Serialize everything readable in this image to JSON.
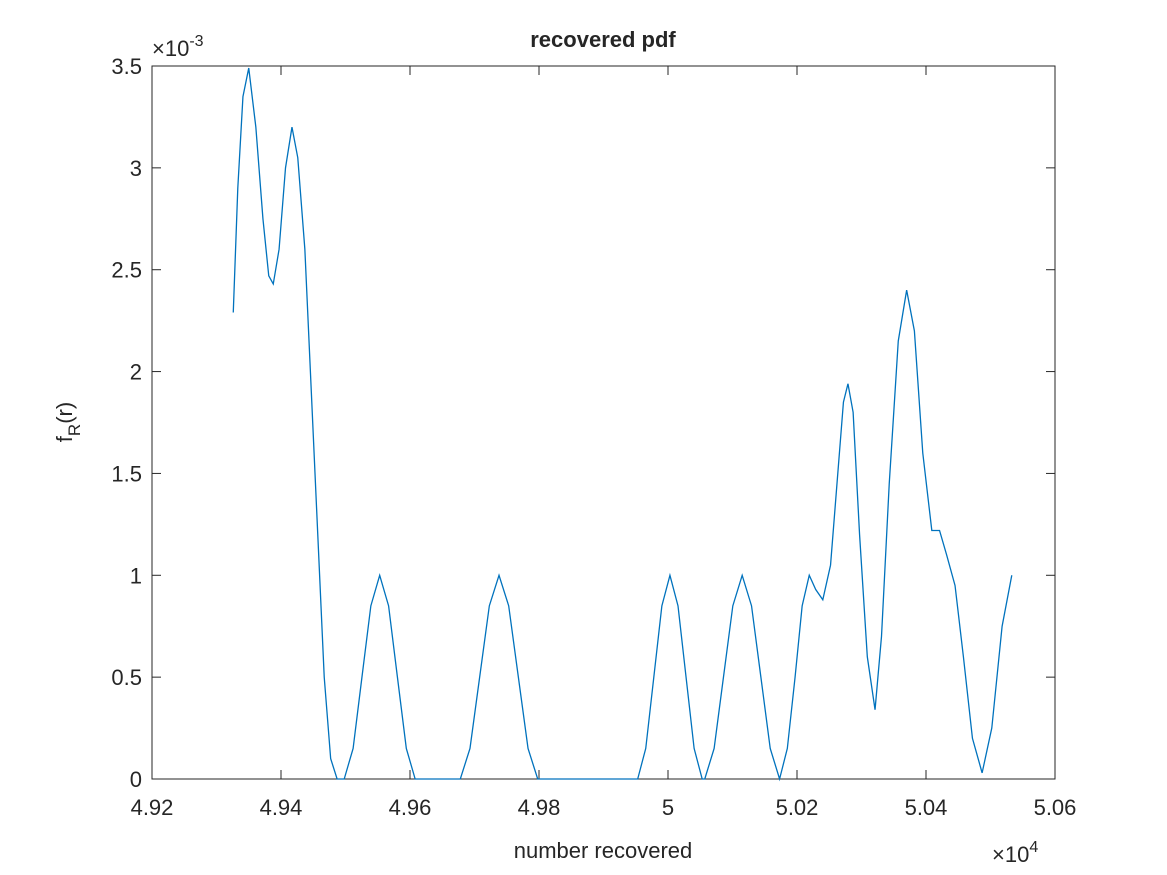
{
  "chart_data": {
    "type": "line",
    "title": "recovered pdf",
    "xlabel": "number recovered",
    "ylabel": {
      "main": "f",
      "sub": "R",
      "tail": "(r)"
    },
    "x_multiplier": {
      "base": "×10",
      "exponent": "4"
    },
    "y_multiplier": {
      "base": "×10",
      "exponent": "-3"
    },
    "xlim": [
      4.92,
      5.06
    ],
    "xticks": [
      4.92,
      4.94,
      4.96,
      4.98,
      5,
      5.02,
      5.04,
      5.06
    ],
    "ylim": [
      0,
      3.5
    ],
    "yticks": [
      0,
      0.5,
      1,
      1.5,
      2,
      2.5,
      3,
      3.5
    ],
    "grid": false,
    "series": [
      {
        "color": "#0072bd",
        "x": [
          4.9326,
          4.9333,
          4.9341,
          4.935,
          4.9361,
          4.9372,
          4.9381,
          4.9388,
          4.9397,
          4.9407,
          4.9417,
          4.9426,
          4.9437,
          4.9447,
          4.9457,
          4.9467,
          4.9477,
          4.9487,
          4.9498,
          4.95118,
          4.95255,
          4.95393,
          4.9553,
          4.95668,
          4.95805,
          4.95943,
          4.9608,
          4.9678,
          4.9693,
          4.9708,
          4.9723,
          4.9738,
          4.9753,
          4.9768,
          4.9783,
          4.9798,
          4.9953,
          4.99655,
          4.9978,
          4.99905,
          5.0003,
          5.00155,
          5.0028,
          5.00405,
          5.0053,
          5.0057,
          5.00715,
          5.0086,
          5.01005,
          5.0115,
          5.01295,
          5.0144,
          5.01585,
          5.0173,
          5.0185,
          5.0197,
          5.0208,
          5.0219,
          5.0229,
          5.024,
          5.0252,
          5.0262,
          5.0272,
          5.0279,
          5.0287,
          5.0297,
          5.0309,
          5.0321,
          5.0331,
          5.0343,
          5.0357,
          5.037,
          5.0382,
          5.0395,
          5.0409,
          5.0421,
          5.0432,
          5.0445,
          5.0458,
          5.0472,
          5.0487,
          5.0502,
          5.0518,
          5.0533
        ],
        "values": [
          2.29,
          2.9,
          3.35,
          3.49,
          3.2,
          2.75,
          2.47,
          2.43,
          2.6,
          3.0,
          3.2,
          3.05,
          2.6,
          1.9,
          1.2,
          0.5,
          0.1,
          0,
          0,
          0.15,
          0.5,
          0.85,
          1,
          0.85,
          0.5,
          0.15,
          0,
          0,
          0.15,
          0.5,
          0.85,
          1,
          0.85,
          0.5,
          0.15,
          0,
          0,
          0.15,
          0.5,
          0.85,
          1,
          0.85,
          0.5,
          0.15,
          0,
          0,
          0.15,
          0.5,
          0.85,
          1,
          0.85,
          0.5,
          0.15,
          0,
          0.15,
          0.5,
          0.85,
          1.0,
          0.93,
          0.88,
          1.05,
          1.45,
          1.85,
          1.94,
          1.8,
          1.2,
          0.6,
          0.34,
          0.7,
          1.45,
          2.15,
          2.4,
          2.2,
          1.6,
          1.22,
          1.22,
          1.1,
          0.95,
          0.6,
          0.2,
          0.03,
          0.25,
          0.75,
          1.0
        ]
      }
    ]
  }
}
